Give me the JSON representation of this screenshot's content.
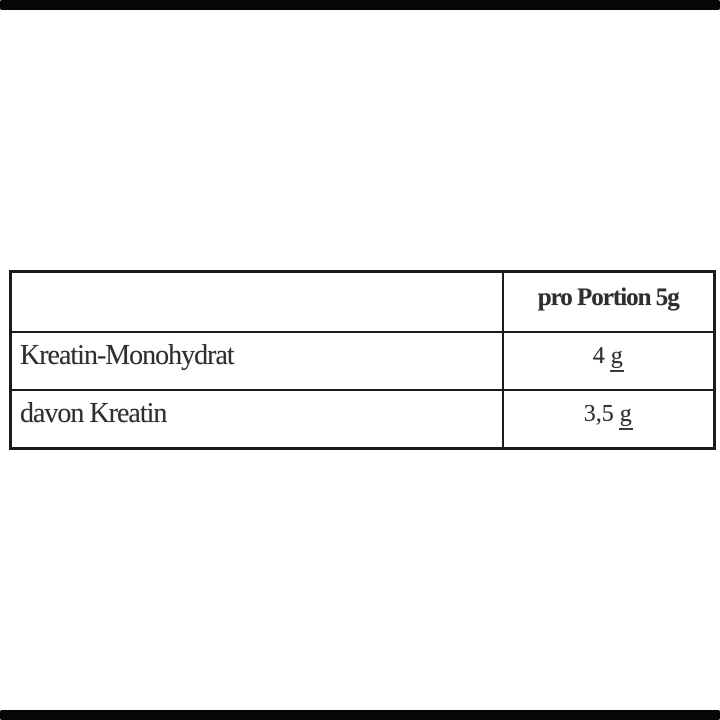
{
  "page": {
    "background": "#ffffff",
    "letterbox_color": "#060606"
  },
  "nutrition_table": {
    "border_color": "#1a1a23",
    "text_color": "#2e2e2e",
    "header": {
      "product_col_label": "",
      "portion_col_label": "pro Portion 5g"
    },
    "rows": [
      {
        "label": "Kreatin-Monohydrat",
        "value": "4",
        "unit": "g"
      },
      {
        "label": "davon Kreatin",
        "value": "3,5",
        "unit": "g"
      }
    ]
  }
}
